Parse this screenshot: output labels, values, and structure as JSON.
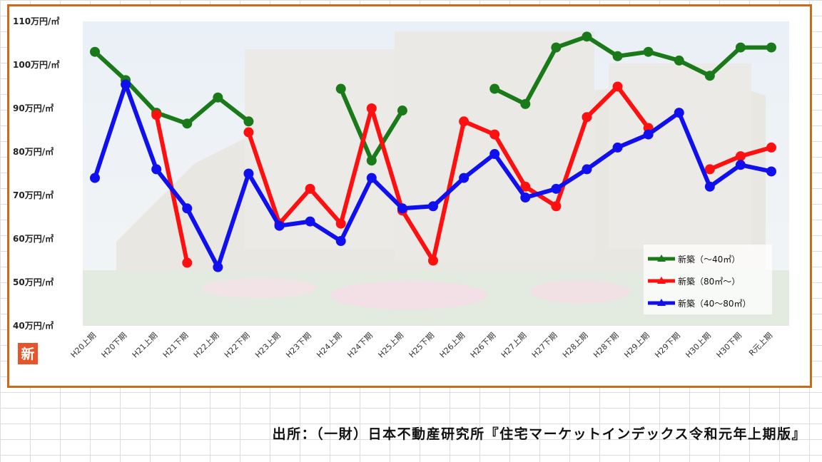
{
  "source_note": "出所：（一財）日本不動産研究所『住宅マーケットインデックス令和元年上期版』",
  "logo_text": "新",
  "chart_data": {
    "type": "line",
    "y_unit_suffix": "万円/㎡",
    "ylim": [
      40,
      110
    ],
    "y_ticks": [
      40,
      50,
      60,
      70,
      80,
      90,
      100,
      110
    ],
    "categories": [
      "H20上期",
      "H20下期",
      "H21上期",
      "H21下期",
      "H22上期",
      "H22下期",
      "H23上期",
      "H23下期",
      "H24上期",
      "H24下期",
      "H25上期",
      "H25下期",
      "H26上期",
      "H26下期",
      "H27上期",
      "H27下期",
      "H28上期",
      "H28下期",
      "H29上期",
      "H29下期",
      "H30上期",
      "H30下期",
      "R元上期"
    ],
    "legend_position": "bottom-right",
    "series": [
      {
        "name": "新築（～40㎡）",
        "color": "#1a7a1a",
        "values": [
          103,
          96.5,
          89,
          86.5,
          92.5,
          87,
          null,
          null,
          94.5,
          78,
          89.5,
          null,
          null,
          94.5,
          91,
          104,
          106.5,
          102,
          103,
          101,
          97.5,
          104,
          104
        ]
      },
      {
        "name": "新築（80㎡～）",
        "color": "#ff1010",
        "values": [
          null,
          null,
          88.5,
          54.5,
          null,
          84.5,
          63.5,
          71.5,
          63.5,
          90,
          66.5,
          55,
          87,
          84,
          72,
          67.5,
          88,
          95,
          85.5,
          null,
          76,
          79,
          81
        ]
      },
      {
        "name": "新築（40～80㎡）",
        "color": "#1010ee",
        "values": [
          74,
          95.5,
          76,
          67,
          53.5,
          75,
          63,
          64,
          59.5,
          74,
          67,
          67.5,
          74,
          79.5,
          69.5,
          71.5,
          76,
          81,
          84,
          89,
          72,
          77,
          75.5
        ]
      }
    ]
  }
}
